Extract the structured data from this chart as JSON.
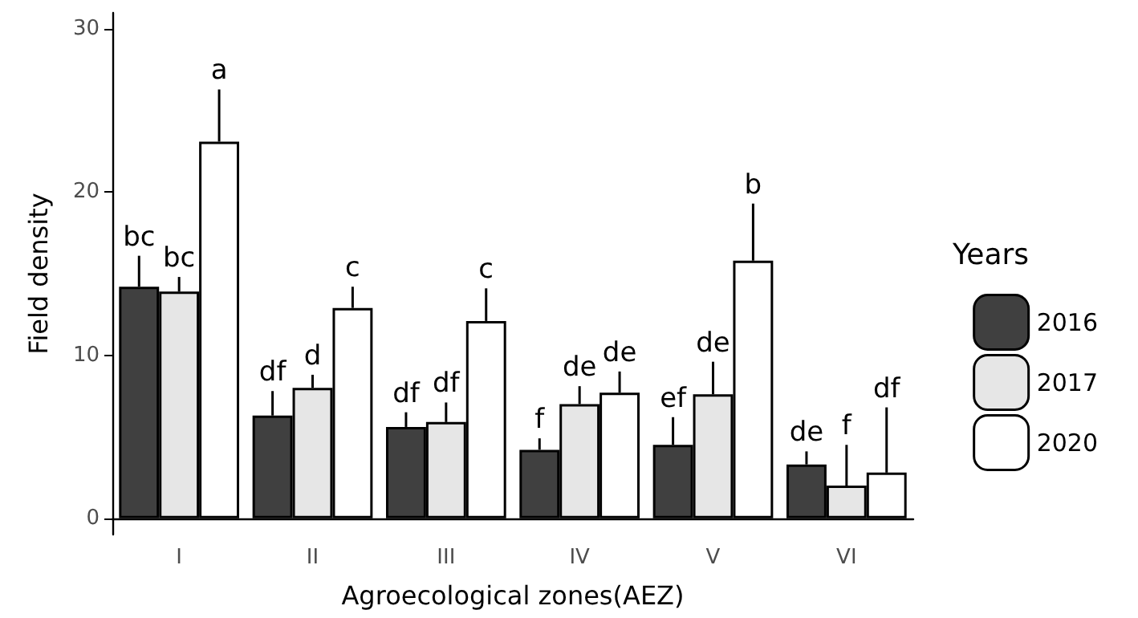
{
  "chart_data": {
    "type": "bar",
    "xlabel": "Agroecological zones(AEZ)",
    "ylabel": "Field density",
    "legend_title": "Years",
    "categories": [
      "I",
      "II",
      "III",
      "IV",
      "V",
      "VI"
    ],
    "series": [
      {
        "name": "2016",
        "color": "#404040",
        "values": [
          14.2,
          6.3,
          5.6,
          4.2,
          4.5,
          3.3
        ],
        "errors": [
          [
            14.2,
            16.1
          ],
          [
            6.3,
            7.8
          ],
          [
            5.6,
            6.5
          ],
          [
            4.2,
            4.9
          ],
          [
            4.5,
            6.2
          ],
          [
            3.3,
            4.1
          ]
        ],
        "value_labels": [
          "bc",
          "df",
          "df",
          "f",
          "ef",
          "de"
        ]
      },
      {
        "name": "2017",
        "color": "#e6e6e6",
        "values": [
          13.9,
          8.0,
          5.9,
          7.0,
          7.6,
          2.0
        ],
        "errors": [
          [
            13.9,
            14.8
          ],
          [
            8.0,
            8.8
          ],
          [
            5.9,
            7.1
          ],
          [
            7.0,
            8.1
          ],
          [
            7.6,
            9.6
          ],
          [
            2.0,
            4.5
          ]
        ],
        "value_labels": [
          "bc",
          "d",
          "df",
          "de",
          "de",
          "f"
        ]
      },
      {
        "name": "2020",
        "color": "#ffffff",
        "values": [
          23.1,
          12.9,
          12.1,
          7.7,
          15.8,
          2.8
        ],
        "errors": [
          [
            23.1,
            26.3
          ],
          [
            12.9,
            14.2
          ],
          [
            12.1,
            14.1
          ],
          [
            7.7,
            9.0
          ],
          [
            15.8,
            19.3
          ],
          [
            2.8,
            6.8
          ]
        ],
        "value_labels": [
          "a",
          "c",
          "c",
          "de",
          "b",
          "df"
        ]
      }
    ],
    "ylim": [
      -1,
      31
    ],
    "yticks": [
      0,
      10,
      20,
      30
    ],
    "grid": false,
    "legend": "right"
  }
}
